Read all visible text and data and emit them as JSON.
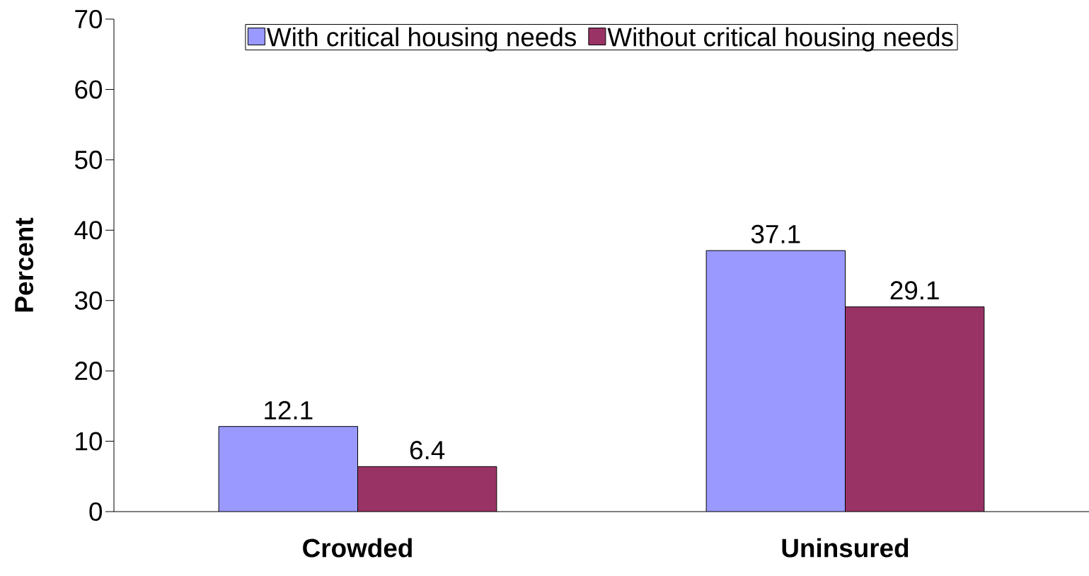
{
  "chart_data": {
    "type": "bar",
    "ylabel": "Percent",
    "categories": [
      "Crowded",
      "Uninsured"
    ],
    "series": [
      {
        "name": "With critical housing needs",
        "color": "#9999ff",
        "values": [
          12.1,
          37.1
        ]
      },
      {
        "name": "Without critical housing needs",
        "color": "#993366",
        "values": [
          6.4,
          29.1
        ]
      }
    ],
    "ylim": [
      0,
      70
    ],
    "yticks": [
      0,
      10,
      20,
      30,
      40,
      50,
      60,
      70
    ],
    "data_labels": true,
    "legend": "top",
    "grid": false
  }
}
